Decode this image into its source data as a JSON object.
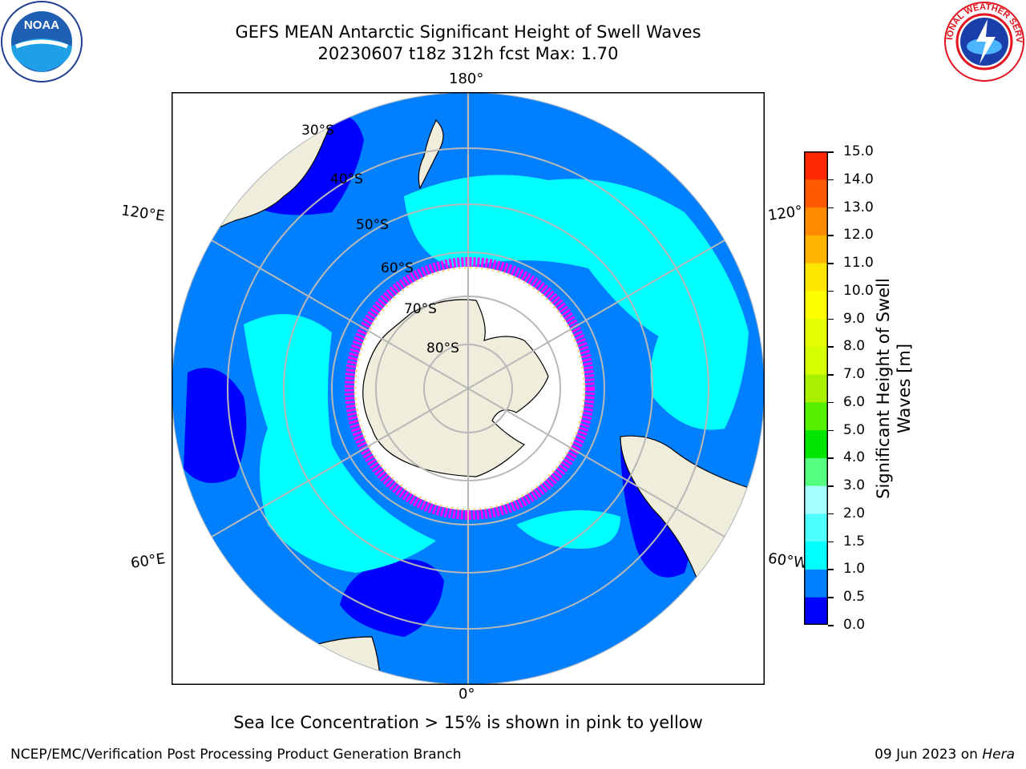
{
  "header": {
    "title_line1": "GEFS MEAN Antarctic Significant Height of Swell Waves",
    "title_line2": "20230607 t18z 312h fcst   Max: 1.70"
  },
  "logos": {
    "left": {
      "icon": "noaa-logo-icon",
      "text": "NOAA"
    },
    "right": {
      "icon": "nws-logo-icon",
      "text": "NATIONAL WEATHER SERVICE"
    }
  },
  "map": {
    "projection": "south-polar-stereographic",
    "lon_labels": [
      "180°",
      "0°",
      "120°E",
      "60°E",
      "120°",
      "60°W"
    ],
    "lat_labels": [
      "30°S",
      "40°S",
      "50°S",
      "60°S",
      "70°S",
      "80°S"
    ],
    "colors": {
      "land": "#efeddc",
      "ocean_low": "#007fff",
      "ocean_lowest": "#0000ff",
      "ocean_mid": "#00ffff",
      "ice_edge": "#ff00ff",
      "ice": "#ffffff",
      "grid": "#b8b8b8"
    }
  },
  "colorbar": {
    "label": "Significant Height of Swell Waves [m]",
    "label_line1": "Significant Height of Swell",
    "label_line2": "Waves [m]",
    "ticks": [
      "15.0",
      "14.0",
      "13.0",
      "12.0",
      "11.0",
      "10.0",
      "9.0",
      "8.0",
      "7.0",
      "6.0",
      "5.0",
      "4.0",
      "3.0",
      "2.0",
      "1.5",
      "1.0",
      "0.5",
      "0.0"
    ],
    "colors": [
      "#0000ff",
      "#007fff",
      "#00ffff",
      "#4dffff",
      "#a6ffff",
      "#55ff7f",
      "#00e600",
      "#55f000",
      "#a8f000",
      "#d4ff00",
      "#e6ff00",
      "#ffff00",
      "#ffe600",
      "#ffb400",
      "#ff8c00",
      "#ff5a00",
      "#ff2800",
      "#ff0000"
    ]
  },
  "note": "Sea Ice Concentration > 15% is shown in pink to yellow",
  "footer": {
    "left": "NCEP/EMC/Verification Post Processing Product Generation Branch",
    "right_date": "09 Jun 2023 on ",
    "right_host": "Hera"
  }
}
